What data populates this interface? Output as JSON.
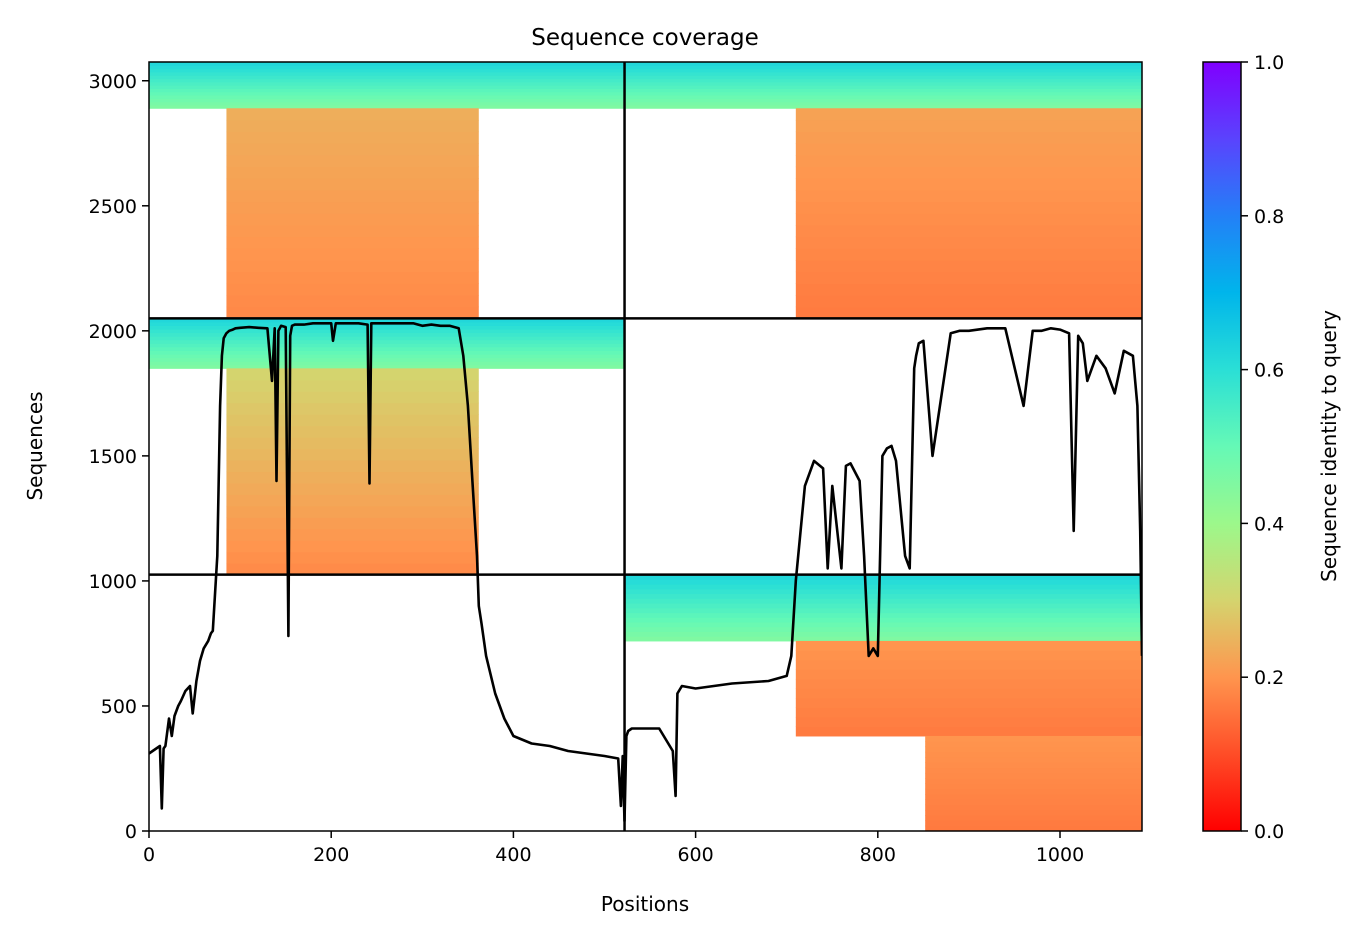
{
  "chart_data": {
    "type": "heatmap",
    "title": "Sequence coverage",
    "xlabel": "Positions",
    "ylabel": "Sequences",
    "colorbar_label": "Sequence identity to query",
    "colormap": "rainbow_r",
    "xlim": [
      0,
      1090
    ],
    "ylim": [
      0,
      3075
    ],
    "x_ticks": [
      0,
      200,
      400,
      600,
      800,
      1000
    ],
    "y_ticks": [
      0,
      500,
      1000,
      1500,
      2000,
      2500,
      3000
    ],
    "colorbar_range": [
      0,
      1
    ],
    "colorbar_ticks": [
      "0.0",
      "0.2",
      "0.4",
      "0.6",
      "0.8",
      "1.0"
    ],
    "dividers": {
      "x": [
        522
      ],
      "y": [
        1025,
        2050
      ]
    },
    "blocks": [
      {
        "name": "block-1",
        "x_range": [
          0,
          522
        ],
        "y_range": [
          1025,
          2050
        ],
        "core_x": [
          85,
          362
        ],
        "core_y_top": 1850,
        "top_band": [
          1850,
          2050
        ],
        "identity_top": 0.62,
        "identity_bottom": 0.22,
        "core_identity_top": 0.3,
        "core_identity_bottom": 0.18
      },
      {
        "name": "block-2",
        "x_range": [
          0,
          522
        ],
        "y_range": [
          2050,
          3075
        ],
        "core_x": [
          85,
          362
        ],
        "core_y_top": 2890,
        "top_band": [
          2890,
          3075
        ],
        "identity_top": 0.62,
        "identity_bottom": 0.22,
        "core_identity_top": 0.24,
        "core_identity_bottom": 0.18
      },
      {
        "name": "block-3",
        "x_range": [
          522,
          1090
        ],
        "y_range": [
          0,
          1025
        ],
        "core_x": [
          852,
          1090
        ],
        "core_y_top": 760,
        "top_band": [
          760,
          1025
        ],
        "identity_top": 0.62,
        "identity_bottom": 0.22,
        "core_identity_top": 0.2,
        "core_identity_bottom": 0.16,
        "mid_x": [
          710,
          1090
        ],
        "mid_y": [
          380,
          760
        ]
      },
      {
        "name": "block-4",
        "x_range": [
          522,
          1090
        ],
        "y_range": [
          2050,
          3075
        ],
        "core_x": [
          710,
          1090
        ],
        "core_y_top": 2890,
        "top_band": [
          2890,
          3075
        ],
        "identity_top": 0.62,
        "identity_bottom": 0.22,
        "core_identity_top": 0.22,
        "core_identity_bottom": 0.16
      }
    ],
    "coverage": {
      "name": "coverage-line",
      "x": [
        0,
        12,
        14,
        16,
        18,
        22,
        25,
        28,
        32,
        35,
        40,
        45,
        48,
        52,
        56,
        60,
        65,
        68,
        70,
        75,
        78,
        80,
        82,
        85,
        88,
        92,
        95,
        100,
        110,
        120,
        130,
        135,
        138,
        140,
        142,
        145,
        150,
        153,
        155,
        157,
        160,
        170,
        180,
        190,
        200,
        202,
        205,
        210,
        220,
        230,
        240,
        242,
        244,
        250,
        260,
        270,
        280,
        290,
        300,
        310,
        320,
        330,
        340,
        345,
        350,
        355,
        360,
        362,
        365,
        370,
        380,
        390,
        400,
        420,
        440,
        460,
        480,
        500,
        515,
        518,
        520,
        522,
        524,
        526,
        530,
        560,
        575,
        578,
        580,
        585,
        600,
        640,
        680,
        700,
        705,
        710,
        720,
        730,
        740,
        745,
        750,
        760,
        765,
        770,
        780,
        785,
        790,
        795,
        800,
        805,
        810,
        815,
        820,
        830,
        835,
        840,
        842,
        845,
        850,
        860,
        880,
        890,
        900,
        920,
        940,
        960,
        970,
        980,
        990,
        1000,
        1010,
        1015,
        1020,
        1025,
        1030,
        1040,
        1050,
        1060,
        1070,
        1080,
        1085,
        1088,
        1090
      ],
      "y": [
        310,
        340,
        90,
        330,
        340,
        450,
        380,
        460,
        500,
        520,
        560,
        580,
        470,
        600,
        680,
        730,
        760,
        790,
        800,
        1100,
        1700,
        1900,
        1970,
        1990,
        2000,
        2005,
        2010,
        2012,
        2015,
        2012,
        2010,
        1800,
        2010,
        1400,
        2000,
        2020,
        2015,
        780,
        1980,
        2020,
        2025,
        2025,
        2030,
        2030,
        2030,
        1960,
        2030,
        2030,
        2030,
        2030,
        2025,
        1390,
        2030,
        2030,
        2030,
        2030,
        2030,
        2030,
        2020,
        2025,
        2020,
        2020,
        2010,
        1900,
        1700,
        1400,
        1100,
        900,
        830,
        700,
        550,
        450,
        380,
        350,
        340,
        320,
        310,
        300,
        290,
        100,
        300,
        40,
        380,
        400,
        410,
        410,
        320,
        140,
        550,
        580,
        570,
        590,
        600,
        620,
        700,
        1000,
        1380,
        1480,
        1450,
        1050,
        1380,
        1050,
        1460,
        1470,
        1400,
        1100,
        700,
        730,
        700,
        1500,
        1530,
        1540,
        1480,
        1100,
        1050,
        1850,
        1900,
        1950,
        1960,
        1500,
        1990,
        2000,
        2000,
        2010,
        2010,
        1700,
        2000,
        2000,
        2010,
        2005,
        1990,
        1200,
        1980,
        1950,
        1800,
        1900,
        1850,
        1750,
        1920,
        1900,
        1700,
        1200,
        700
      ]
    }
  }
}
